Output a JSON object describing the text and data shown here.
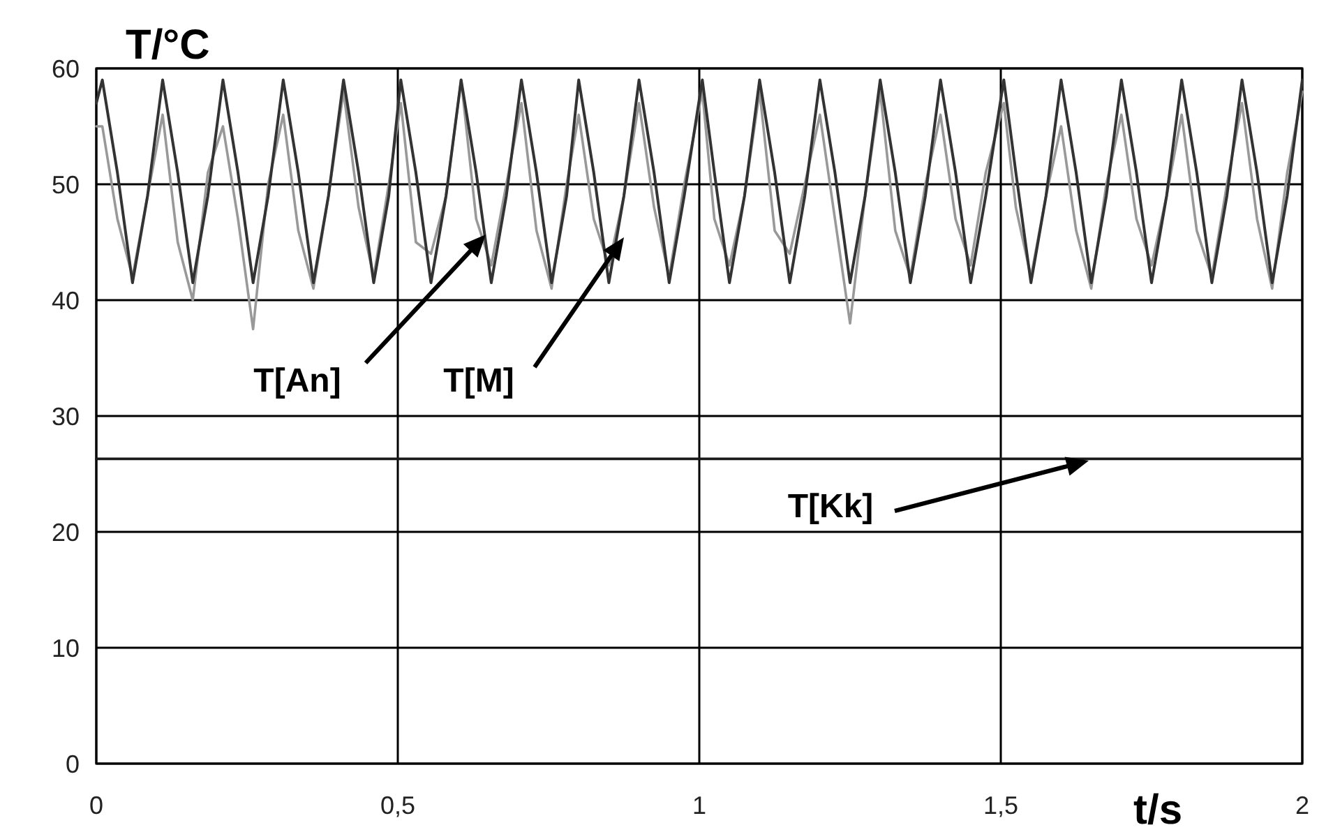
{
  "chart_data": {
    "type": "line",
    "xlabel": "t/s",
    "ylabel": "T/°C",
    "xlim": [
      0,
      2
    ],
    "ylim": [
      0,
      60
    ],
    "xticks": [
      0,
      {
        "value": 0.5,
        "label": "0,5"
      },
      1,
      {
        "value": 1.5,
        "label": "1,5"
      },
      2
    ],
    "yticks": [
      0,
      10,
      20,
      30,
      40,
      50,
      60
    ],
    "grid": true,
    "marker": "none",
    "line_style": "solid",
    "x": [
      0,
      0.01,
      0.035,
      0.06,
      0.085,
      0.11,
      0.135,
      0.16,
      0.185,
      0.21,
      0.235,
      0.26,
      0.285,
      0.31,
      0.335,
      0.36,
      0.385,
      0.41,
      0.435,
      0.46,
      0.485,
      0.505,
      0.53,
      0.555,
      0.58,
      0.605,
      0.63,
      0.655,
      0.68,
      0.705,
      0.73,
      0.755,
      0.78,
      0.8,
      0.825,
      0.85,
      0.875,
      0.9,
      0.925,
      0.95,
      0.975,
      1.005,
      1.025,
      1.05,
      1.075,
      1.1,
      1.125,
      1.15,
      1.175,
      1.2,
      1.225,
      1.25,
      1.275,
      1.3,
      1.325,
      1.35,
      1.375,
      1.4,
      1.425,
      1.45,
      1.475,
      1.505,
      1.525,
      1.55,
      1.575,
      1.6,
      1.625,
      1.65,
      1.675,
      1.7,
      1.725,
      1.75,
      1.775,
      1.8,
      1.825,
      1.85,
      1.875,
      1.9,
      1.925,
      1.95,
      1.975,
      2.0
    ],
    "series": [
      {
        "color": "#999999",
        "values": [
          55,
          55,
          47,
          42,
          49,
          56,
          45,
          40,
          51,
          55,
          47,
          37.5,
          50,
          56,
          46,
          41,
          49,
          58,
          48,
          42,
          50,
          57,
          45,
          44,
          49,
          59,
          47,
          43,
          50,
          57,
          46,
          41,
          50,
          56,
          47,
          43,
          49,
          57,
          48,
          42,
          50,
          58,
          47,
          43,
          49,
          58,
          46,
          44,
          50,
          56,
          47,
          38,
          49,
          58,
          46,
          42,
          50,
          56,
          47,
          43,
          51,
          57,
          48,
          42,
          49,
          55,
          46,
          41,
          50,
          56,
          47,
          43,
          49,
          56,
          46,
          42,
          50,
          57,
          47,
          41,
          51,
          58
        ]
      },
      {
        "color": "#333333",
        "values": [
          57,
          59,
          51,
          41.5,
          49,
          59,
          51,
          41.5,
          49,
          59,
          51,
          41.5,
          49,
          59,
          51,
          41.5,
          49,
          59,
          51,
          41.5,
          49,
          59,
          51,
          41.5,
          49,
          59,
          51,
          41.5,
          49,
          59,
          51,
          41.5,
          49,
          59,
          51,
          41.5,
          49,
          59,
          51,
          41.5,
          49,
          59,
          51,
          41.5,
          49,
          59,
          51,
          41.5,
          49,
          59,
          51,
          41.5,
          49,
          59,
          51,
          41.5,
          49,
          59,
          51,
          41.5,
          49,
          59,
          51,
          41.5,
          49,
          59,
          51,
          41.5,
          49,
          59,
          51,
          41.5,
          49,
          59,
          51,
          41.5,
          49,
          59,
          51,
          41.5,
          49,
          59
        ]
      },
      {
        "color": "#1a1a1a",
        "x": [
          0,
          2
        ],
        "values": [
          26.3,
          26.3
        ]
      }
    ],
    "annotations": [
      "T[An]",
      "T[M]",
      "T[Kk]"
    ]
  }
}
